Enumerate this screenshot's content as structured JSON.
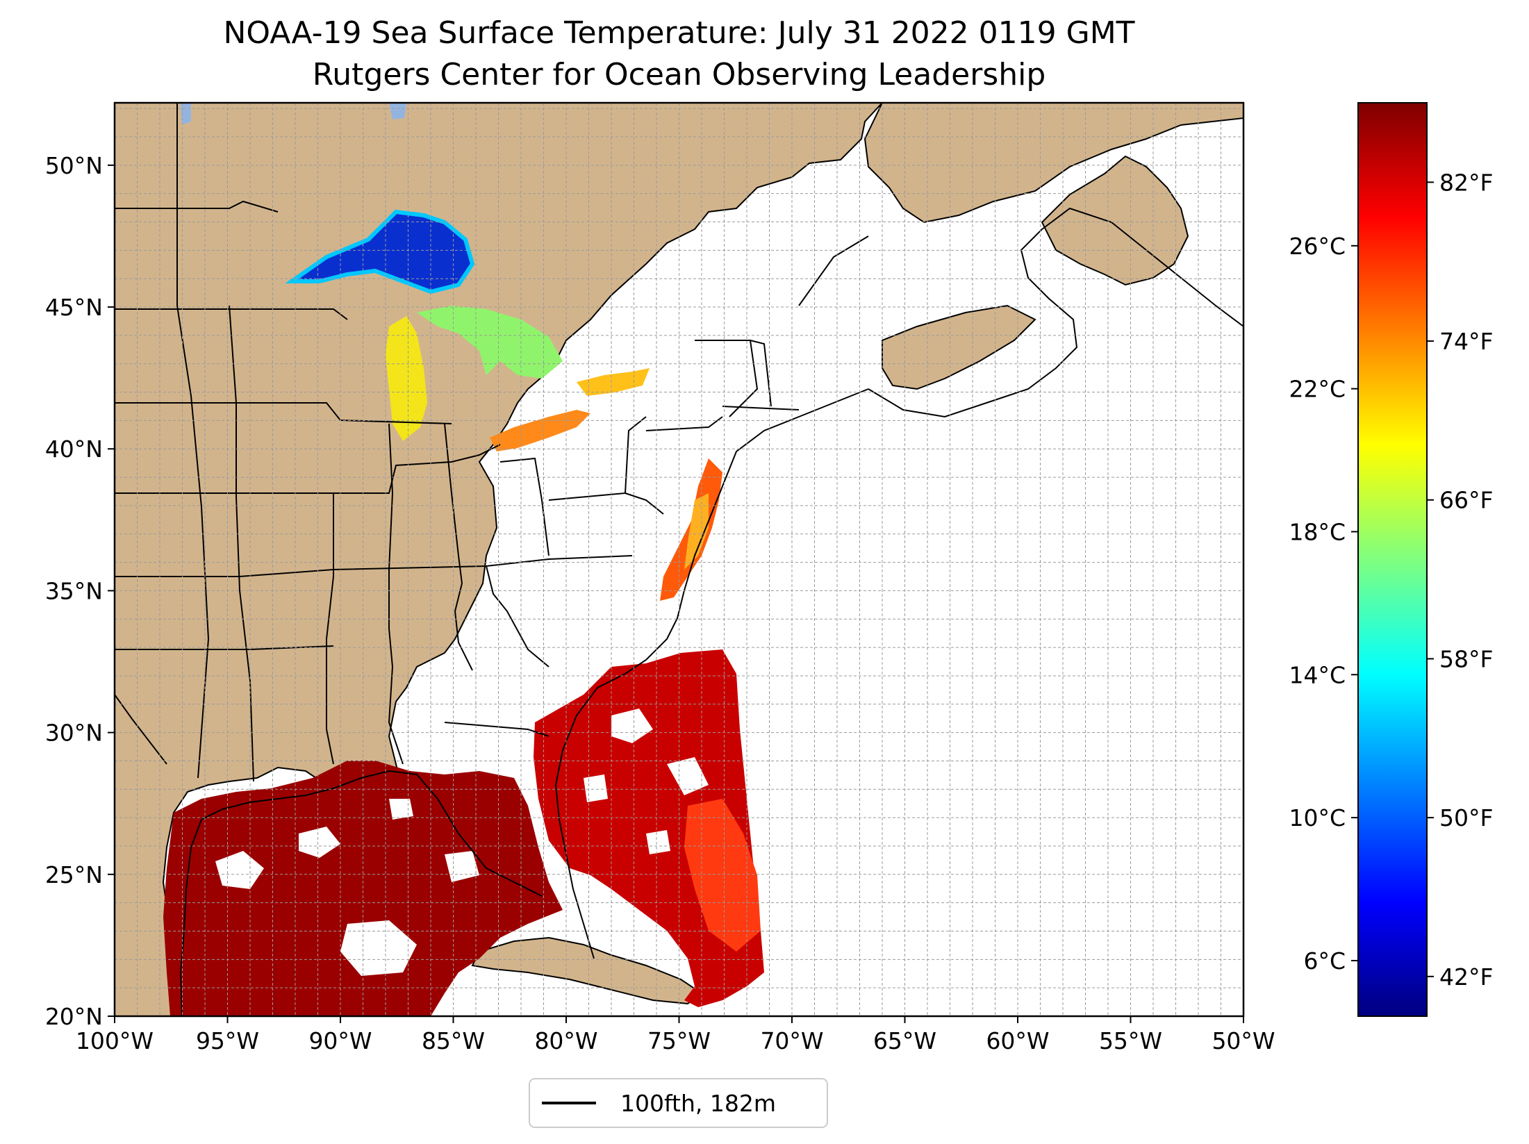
{
  "title": "NOAA-19 Sea Surface Temperature: July 31 2022 0119 GMT",
  "subtitle": "Rutgers Center for Ocean Observing Leadership",
  "map": {
    "projection": "PlateCarree",
    "lon_range": [
      -100,
      -50
    ],
    "lat_range": [
      20,
      52.2
    ],
    "lon_ticks": [
      {
        "value": -100,
        "label": "100°W"
      },
      {
        "value": -95,
        "label": "95°W"
      },
      {
        "value": -90,
        "label": "90°W"
      },
      {
        "value": -85,
        "label": "85°W"
      },
      {
        "value": -80,
        "label": "80°W"
      },
      {
        "value": -75,
        "label": "75°W"
      },
      {
        "value": -70,
        "label": "70°W"
      },
      {
        "value": -65,
        "label": "65°W"
      },
      {
        "value": -60,
        "label": "60°W"
      },
      {
        "value": -55,
        "label": "55°W"
      },
      {
        "value": -50,
        "label": "50°W"
      }
    ],
    "lat_ticks": [
      {
        "value": 20,
        "label": "20°N"
      },
      {
        "value": 25,
        "label": "25°N"
      },
      {
        "value": 30,
        "label": "30°N"
      },
      {
        "value": 35,
        "label": "35°N"
      },
      {
        "value": 40,
        "label": "40°N"
      },
      {
        "value": 45,
        "label": "45°N"
      },
      {
        "value": 50,
        "label": "50°N"
      }
    ],
    "gridlines": "dashed, 1 degree",
    "land_color": "#D2B48C",
    "ocean_color": "#FFFFFF",
    "lake_color": "#94B4E0"
  },
  "colorbar": {
    "colormap": "jet",
    "vmin_f": 40,
    "vmax_f": 86,
    "fahrenheit_ticks": [
      {
        "value": 42,
        "label": "42°F"
      },
      {
        "value": 50,
        "label": "50°F"
      },
      {
        "value": 58,
        "label": "58°F"
      },
      {
        "value": 66,
        "label": "66°F"
      },
      {
        "value": 74,
        "label": "74°F"
      },
      {
        "value": 82,
        "label": "82°F"
      }
    ],
    "celsius_ticks": [
      {
        "value_c": 6,
        "label": "6°C"
      },
      {
        "value_c": 10,
        "label": "10°C"
      },
      {
        "value_c": 14,
        "label": "14°C"
      },
      {
        "value_c": 18,
        "label": "18°C"
      },
      {
        "value_c": 22,
        "label": "22°C"
      },
      {
        "value_c": 26,
        "label": "26°C"
      }
    ],
    "colors": [
      "#00007F",
      "#0000FF",
      "#007FFF",
      "#00FFFF",
      "#7FFF7F",
      "#FFFF00",
      "#FF7F00",
      "#FF0000",
      "#7F0000"
    ]
  },
  "legend": {
    "entries": [
      {
        "label": "100fth, 182m",
        "color": "#000000",
        "style": "solid line"
      }
    ],
    "placement": "bottom-center"
  }
}
